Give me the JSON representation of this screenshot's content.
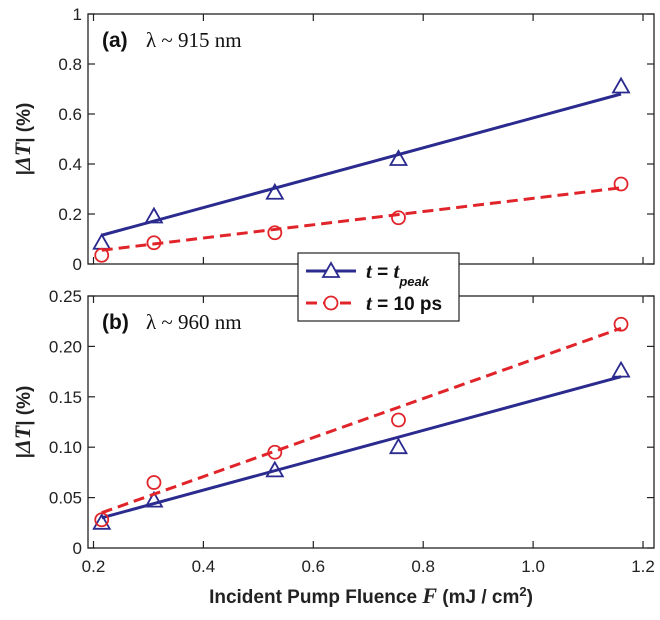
{
  "chart_data": [
    {
      "type": "scatter",
      "panel_label": "(a)",
      "lambda_text": "λ ~ 915 nm",
      "ylabel_parts": [
        "|",
        "ΔT",
        "| (%)"
      ],
      "ylim": [
        0,
        1
      ],
      "yticks": [
        0,
        0.2,
        0.4,
        0.6,
        0.8,
        1
      ],
      "ytick_labels": [
        "0",
        "0.2",
        "0.4",
        "0.6",
        "0.8",
        "1"
      ],
      "xlim": [
        0.19,
        1.22
      ],
      "series": [
        {
          "marker": "triangle",
          "line": "solid",
          "color": "#2b2b8f",
          "x": [
            0.215,
            0.31,
            0.53,
            0.755,
            1.16
          ],
          "y": [
            0.085,
            0.19,
            0.285,
            0.42,
            0.71
          ],
          "fit": [
            [
              0.215,
              0.115
            ],
            [
              1.16,
              0.68
            ]
          ]
        },
        {
          "marker": "circle",
          "line": "dashed",
          "color": "#e0242a",
          "x": [
            0.215,
            0.31,
            0.53,
            0.755,
            1.16
          ],
          "y": [
            0.035,
            0.085,
            0.125,
            0.185,
            0.32
          ],
          "fit": [
            [
              0.215,
              0.055
            ],
            [
              1.16,
              0.305
            ]
          ]
        }
      ]
    },
    {
      "type": "scatter",
      "panel_label": "(b)",
      "lambda_text": "λ ~ 960 nm",
      "ylabel_parts": [
        "|",
        "ΔT",
        "| (%)"
      ],
      "ylim": [
        0,
        0.25
      ],
      "yticks": [
        0,
        0.05,
        0.1,
        0.15,
        0.2,
        0.25
      ],
      "ytick_labels": [
        "0",
        "0.05",
        "0.10",
        "0.15",
        "0.20",
        "0.25"
      ],
      "xlim": [
        0.19,
        1.22
      ],
      "xticks": [
        0.2,
        0.4,
        0.6,
        0.8,
        1.0,
        1.2
      ],
      "xtick_labels": [
        "0.2",
        "0.4",
        "0.6",
        "0.8",
        "1.0",
        "1.2"
      ],
      "series": [
        {
          "marker": "triangle",
          "line": "solid",
          "color": "#2b2b8f",
          "x": [
            0.215,
            0.31,
            0.53,
            0.755,
            1.16
          ],
          "y": [
            0.025,
            0.047,
            0.077,
            0.1,
            0.176
          ],
          "fit": [
            [
              0.215,
              0.03
            ],
            [
              1.16,
              0.17
            ]
          ]
        },
        {
          "marker": "circle",
          "line": "dashed",
          "color": "#e0242a",
          "x": [
            0.215,
            0.31,
            0.53,
            0.755,
            1.16
          ],
          "y": [
            0.028,
            0.065,
            0.095,
            0.127,
            0.222
          ],
          "fit": [
            [
              0.215,
              0.035
            ],
            [
              1.16,
              0.218
            ]
          ]
        }
      ]
    }
  ],
  "xlabel": {
    "prefix": "Incident Pump Fluence ",
    "variable": "F",
    "suffix": " (mJ / cm",
    "sup": "2",
    "close": ")"
  },
  "legend": [
    {
      "marker": "triangle",
      "line": "solid",
      "color": "#2b2b8f",
      "lhs": "t",
      "eq": " = ",
      "rhs": "t",
      "rhs_sub": "peak",
      "rhs_plain": ""
    },
    {
      "marker": "circle",
      "line": "dashed",
      "color": "#e0242a",
      "lhs": "t",
      "eq": " = ",
      "rhs": "",
      "rhs_sub": "",
      "rhs_plain": "10 ps"
    }
  ]
}
